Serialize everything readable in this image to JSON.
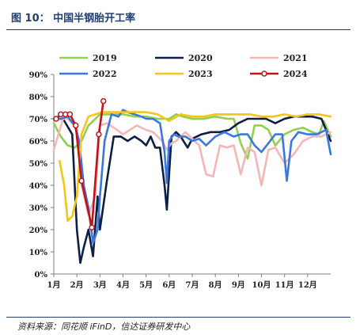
{
  "header": {
    "title": "图 10： 中国半钢胎开工率"
  },
  "footer": {
    "source": "资料来源：同花顺 iFinD，信达证券研发中心"
  },
  "chart_data": {
    "type": "line",
    "title": "图 10： 中国半钢胎开工率",
    "xlabel": "",
    "ylabel": "",
    "ylim": [
      0,
      90
    ],
    "xlim": [
      0,
      12
    ],
    "yticks": [
      "0%",
      "10%",
      "20%",
      "30%",
      "40%",
      "50%",
      "60%",
      "70%",
      "80%",
      "90%"
    ],
    "xticks": [
      "1月",
      "2月",
      "3月",
      "4月",
      "5月",
      "6月",
      "7月",
      "8月",
      "9月",
      "10月",
      "11月",
      "12月"
    ],
    "grid": false,
    "legend": "top",
    "series": [
      {
        "name": "2019",
        "color": "#92d050",
        "markers": false,
        "x": [
          0.0,
          0.3,
          0.6,
          0.9,
          1.2,
          1.5,
          2.0,
          2.5,
          3.0,
          3.5,
          4.0,
          4.5,
          5.0,
          5.3,
          5.6,
          6.0,
          6.5,
          7.0,
          7.5,
          7.8,
          8.1,
          8.4,
          8.7,
          9.0,
          9.3,
          9.6,
          10.0,
          10.4,
          10.8,
          11.2,
          11.5,
          11.7,
          12.0
        ],
        "y": [
          68,
          62,
          58,
          57,
          60,
          67,
          72,
          72,
          72,
          71,
          71,
          70,
          70,
          72,
          71,
          70,
          70,
          71,
          70,
          70,
          59,
          52,
          67,
          67,
          65,
          58,
          63,
          65,
          66,
          64,
          63,
          69,
          62
        ]
      },
      {
        "name": "2020",
        "color": "#0d1f44",
        "markers": false,
        "x": [
          0.0,
          0.4,
          0.8,
          1.0,
          1.15,
          1.3,
          1.5,
          1.7,
          1.9,
          2.0,
          2.3,
          2.6,
          2.9,
          3.2,
          3.5,
          3.8,
          4.0,
          4.2,
          4.4,
          4.6,
          4.8,
          4.9,
          5.1,
          5.3,
          5.5,
          5.8,
          6.0,
          6.4,
          6.8,
          7.2,
          7.6,
          8.0,
          8.4,
          8.8,
          9.2,
          9.6,
          10.0,
          10.4,
          10.8,
          11.2,
          11.6,
          12.0
        ],
        "y": [
          70,
          70,
          63,
          20,
          5,
          12,
          20,
          8,
          35,
          20,
          42,
          62,
          62,
          60,
          62,
          60,
          58,
          62,
          57,
          57,
          40,
          29,
          62,
          64,
          62,
          57,
          61,
          63,
          64,
          64,
          65,
          68,
          70,
          70,
          70,
          68,
          70,
          71,
          71,
          71,
          70,
          60
        ]
      },
      {
        "name": "2021",
        "color": "#f4b6b6",
        "markers": false,
        "x": [
          0.0,
          0.2,
          0.4,
          0.6,
          0.8,
          1.0,
          1.2,
          1.5,
          1.8,
          2.0,
          2.3,
          2.6,
          3.0,
          3.3,
          3.6,
          4.0,
          4.3,
          4.7,
          4.9,
          5.1,
          5.3,
          5.7,
          6.0,
          6.3,
          6.6,
          6.9,
          7.2,
          7.5,
          7.8,
          8.1,
          8.4,
          8.7,
          9.0,
          9.3,
          9.6,
          10.0,
          10.4,
          10.8,
          11.2,
          11.6,
          12.0
        ],
        "y": [
          56,
          63,
          70,
          70,
          68,
          67,
          40,
          27,
          35,
          67,
          68,
          66,
          63,
          65,
          67,
          65,
          64,
          60,
          56,
          59,
          60,
          64,
          61,
          58,
          45,
          44,
          58,
          57,
          58,
          45,
          57,
          55,
          40,
          56,
          57,
          50,
          54,
          60,
          62,
          62,
          64
        ]
      },
      {
        "name": "2022",
        "color": "#3a78e0",
        "markers": false,
        "x": [
          0.0,
          0.3,
          0.6,
          0.9,
          1.1,
          1.3,
          1.5,
          1.7,
          1.9,
          2.0,
          2.2,
          2.5,
          2.8,
          3.0,
          3.2,
          3.5,
          3.8,
          4.0,
          4.3,
          4.6,
          4.8,
          4.9,
          5.0,
          5.2,
          5.4,
          5.7,
          6.0,
          6.3,
          6.6,
          7.0,
          7.4,
          7.8,
          8.1,
          8.4,
          8.7,
          9.0,
          9.3,
          9.6,
          9.9,
          10.1,
          10.3,
          10.6,
          11.0,
          11.4,
          11.8,
          12.0
        ],
        "y": [
          70,
          70,
          71,
          67,
          60,
          40,
          30,
          14,
          20,
          35,
          60,
          72,
          71,
          74,
          73,
          72,
          71,
          70,
          70,
          68,
          55,
          41,
          60,
          63,
          62,
          62,
          60,
          61,
          58,
          62,
          64,
          62,
          63,
          63,
          58,
          55,
          59,
          63,
          63,
          42,
          60,
          64,
          63,
          63,
          65,
          54
        ]
      },
      {
        "name": "2023",
        "color": "#f5c518",
        "markers": false,
        "x": [
          0.25,
          0.45,
          0.6,
          0.8,
          1.0,
          1.2,
          1.5,
          1.8,
          2.1,
          2.5,
          3.0,
          3.5,
          4.0,
          4.5,
          5.0,
          5.5,
          6.0,
          6.5,
          7.0,
          7.5,
          8.0,
          8.5,
          9.0,
          9.5,
          10.0,
          10.5,
          11.0,
          11.5,
          12.0
        ],
        "y": [
          51,
          40,
          24,
          26,
          35,
          63,
          71,
          72,
          73,
          73,
          73,
          73,
          73,
          72,
          69,
          72,
          71,
          71,
          72,
          72,
          72,
          72,
          71,
          71,
          72,
          71,
          72,
          72,
          71
        ]
      },
      {
        "name": "2024",
        "color": "#c0141b",
        "markers": true,
        "x": [
          0.1,
          0.3,
          0.5,
          0.7,
          0.95,
          1.2,
          1.65,
          1.95,
          2.15
        ],
        "y": [
          70,
          72,
          72,
          72,
          67,
          42,
          21,
          63,
          78
        ]
      }
    ]
  }
}
